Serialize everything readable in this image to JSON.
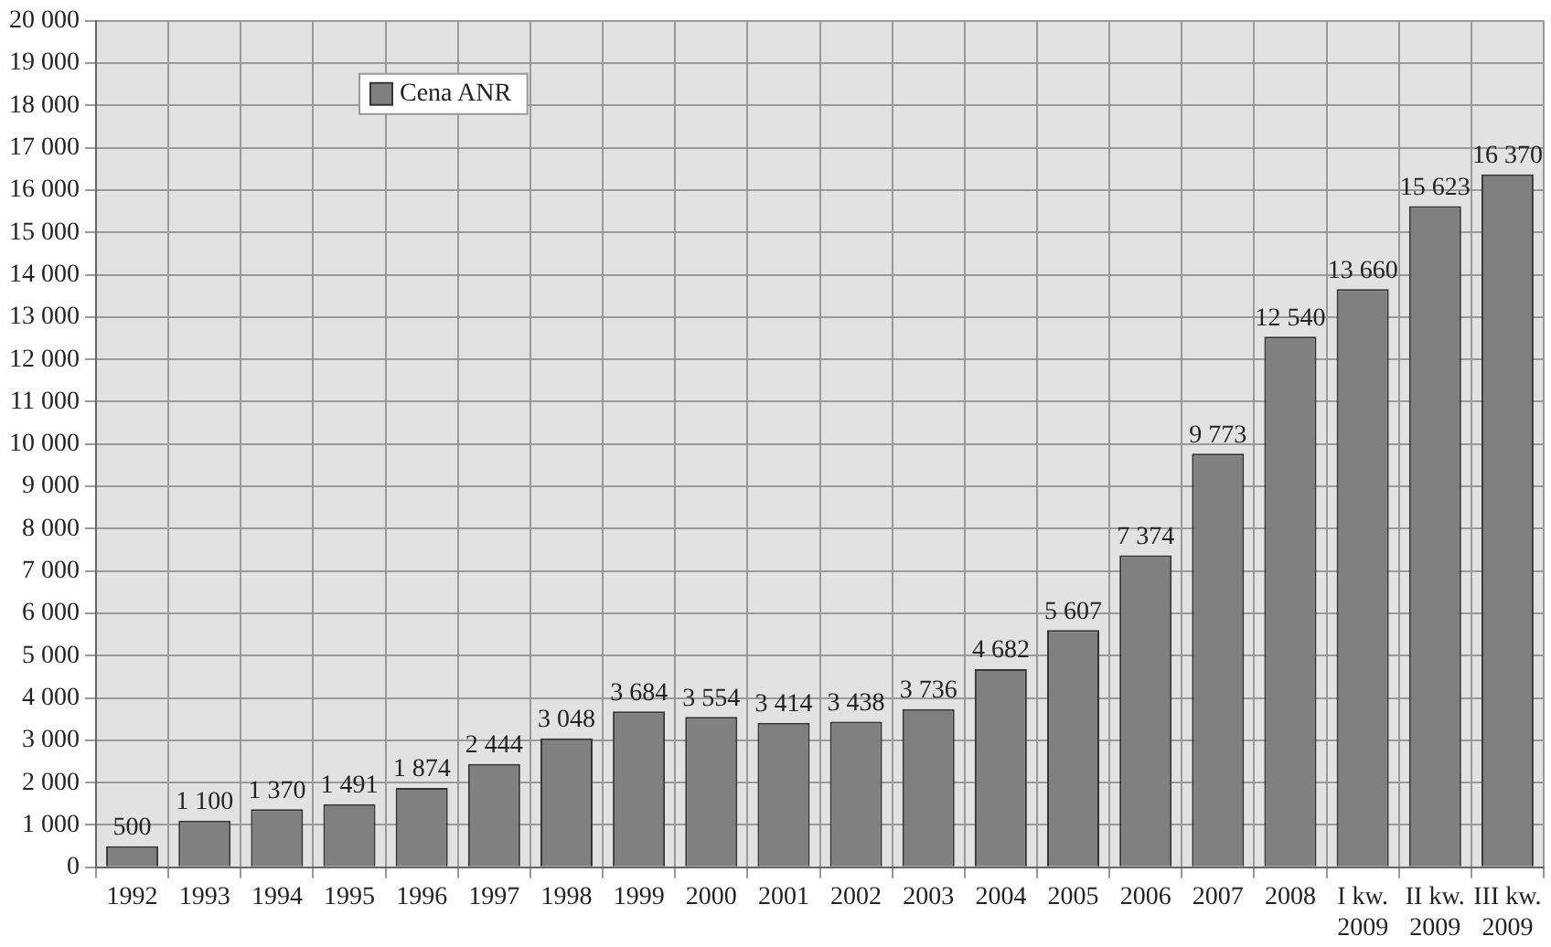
{
  "chart_data": {
    "type": "bar",
    "categories": [
      "1992",
      "1993",
      "1994",
      "1995",
      "1996",
      "1997",
      "1998",
      "1999",
      "2000",
      "2001",
      "2002",
      "2003",
      "2004",
      "2005",
      "2006",
      "2007",
      "2008",
      "I kw. 2009",
      "II kw. 2009",
      "III kw. 2009"
    ],
    "series": [
      {
        "name": "Cena ANR",
        "color": "#808080",
        "values": [
          500,
          1100,
          1370,
          1491,
          1874,
          2444,
          3048,
          3684,
          3554,
          3414,
          3438,
          3736,
          4682,
          5607,
          7374,
          9773,
          12540,
          13660,
          15623,
          16370
        ],
        "value_labels": [
          "500",
          "1 100",
          "1 370",
          "1 491",
          "1 874",
          "2 444",
          "3 048",
          "3 684",
          "3 554",
          "3 414",
          "3 438",
          "3 736",
          "4 682",
          "5 607",
          "7 374",
          "9 773",
          "12 540",
          "13 660",
          "15 623",
          "16 370"
        ]
      }
    ],
    "ylim": [
      0,
      20000
    ],
    "yticks": [
      {
        "value": 0,
        "label": "0"
      },
      {
        "value": 1000,
        "label": "1 000"
      },
      {
        "value": 2000,
        "label": "2 000"
      },
      {
        "value": 3000,
        "label": "3 000"
      },
      {
        "value": 4000,
        "label": "4 000"
      },
      {
        "value": 5000,
        "label": "5 000"
      },
      {
        "value": 6000,
        "label": "6 000"
      },
      {
        "value": 7000,
        "label": "7 000"
      },
      {
        "value": 8000,
        "label": "8 000"
      },
      {
        "value": 9000,
        "label": "9 000"
      },
      {
        "value": 10000,
        "label": "10 000"
      },
      {
        "value": 11000,
        "label": "11 000"
      },
      {
        "value": 12000,
        "label": "12 000"
      },
      {
        "value": 13000,
        "label": "13 000"
      },
      {
        "value": 14000,
        "label": "14 000"
      },
      {
        "value": 15000,
        "label": "15 000"
      },
      {
        "value": 16000,
        "label": "16 000"
      },
      {
        "value": 17000,
        "label": "17 000"
      },
      {
        "value": 18000,
        "label": "18 000"
      },
      {
        "value": 19000,
        "label": "19 000"
      },
      {
        "value": 20000,
        "label": "20 000"
      }
    ],
    "grid": true,
    "legend": "top left"
  }
}
